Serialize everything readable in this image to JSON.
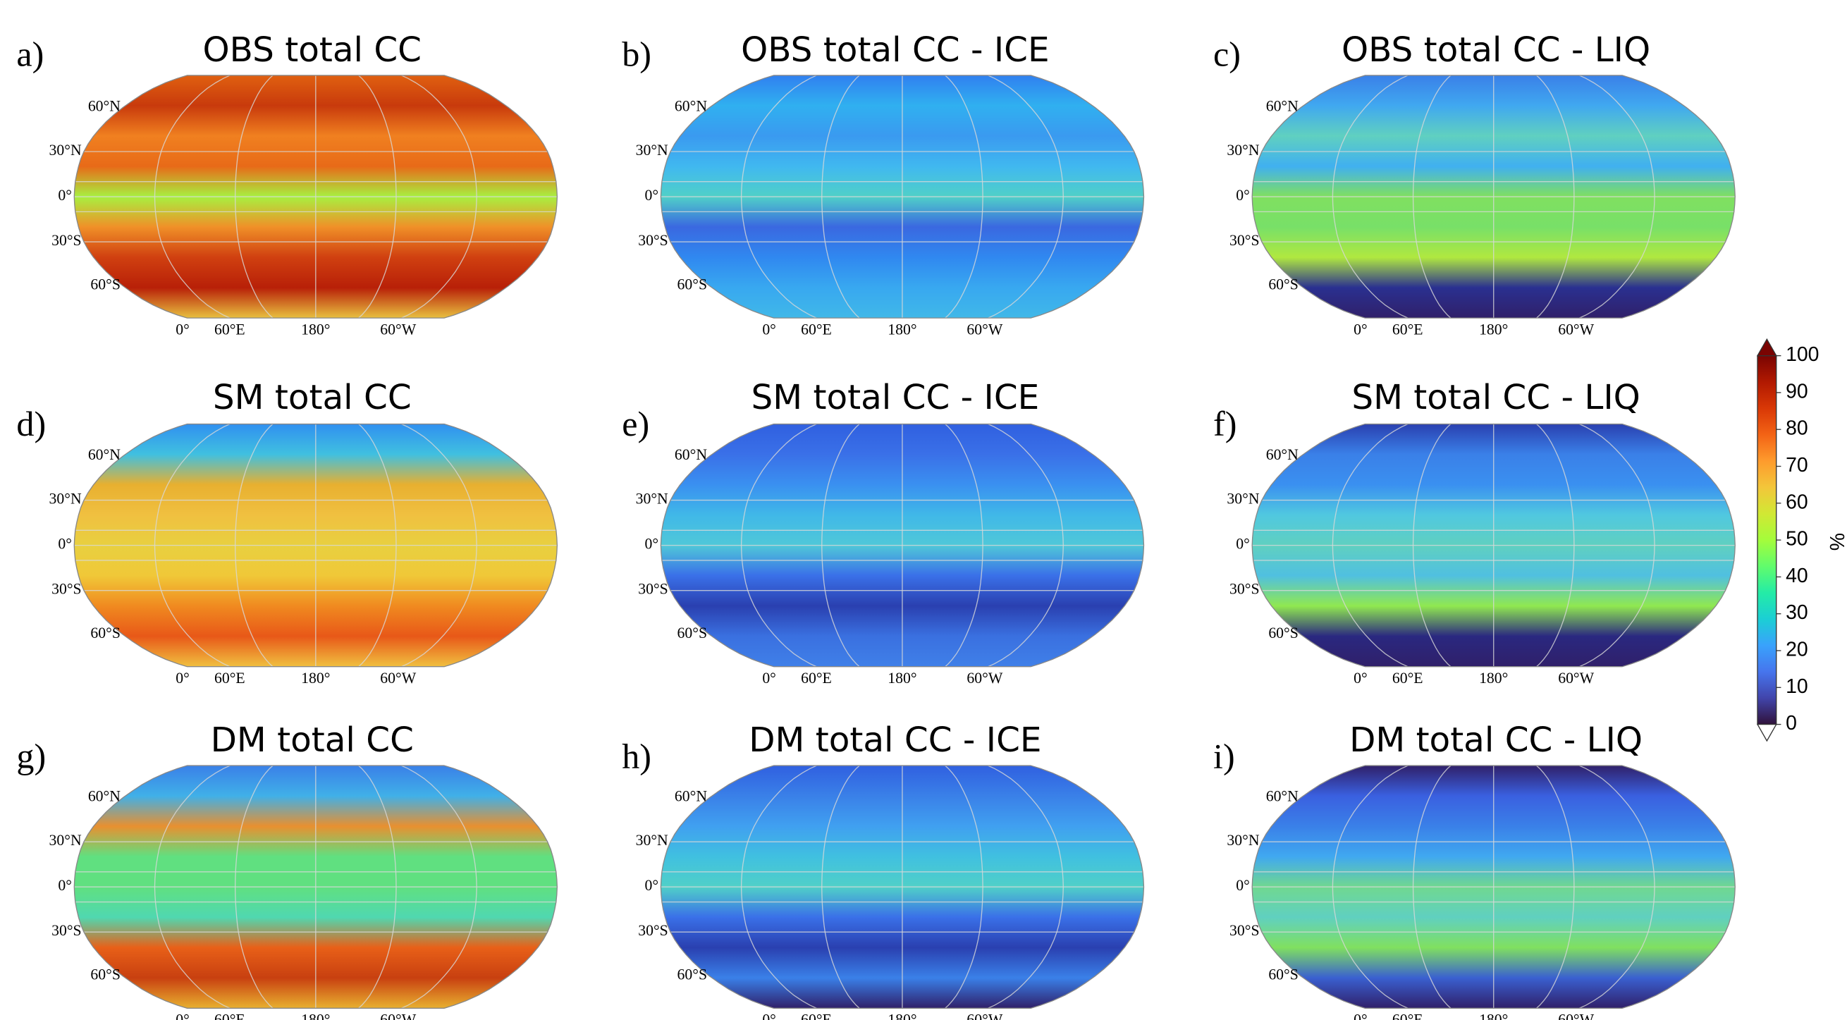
{
  "panels": [
    {
      "label": "a)",
      "title": "OBS total CC"
    },
    {
      "label": "b)",
      "title": "OBS total CC - ICE"
    },
    {
      "label": "c)",
      "title": "OBS total CC - LIQ"
    },
    {
      "label": "d)",
      "title": "SM total CC"
    },
    {
      "label": "e)",
      "title": "SM total CC - ICE"
    },
    {
      "label": "f)",
      "title": "SM total CC - LIQ"
    },
    {
      "label": "g)",
      "title": "DM total CC"
    },
    {
      "label": "h)",
      "title": "DM total CC - ICE"
    },
    {
      "label": "i)",
      "title": "DM total CC - LIQ"
    }
  ],
  "lat_labels": [
    "60°N",
    "30°N",
    "0°",
    "30°S",
    "60°S"
  ],
  "lon_labels": [
    "0°",
    "60°E",
    "180°",
    "60°W"
  ],
  "colorbar": {
    "label": "%",
    "lim": [
      0,
      100
    ],
    "ticks": [
      0,
      10,
      20,
      30,
      40,
      50,
      60,
      70,
      80,
      90,
      100
    ],
    "colors": [
      "#30123b",
      "#4145ab",
      "#4675ed",
      "#39a2fc",
      "#1bcfd4",
      "#24eca6",
      "#61fc6c",
      "#a4fc3b",
      "#d1e834",
      "#f3c63a",
      "#fe9b2d",
      "#f36315",
      "#d93806",
      "#b11901",
      "#7a0402"
    ]
  }
}
